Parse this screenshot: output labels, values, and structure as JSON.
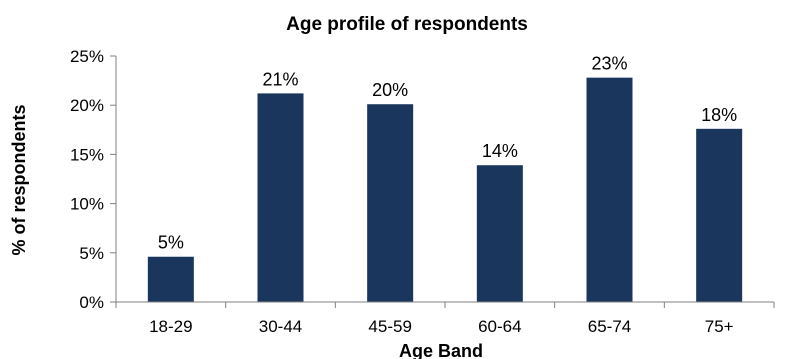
{
  "chart_data": {
    "type": "bar",
    "title": "Age profile of respondents",
    "xlabel": "Age Band",
    "ylabel": "% of respondents",
    "categories": [
      "18-29",
      "30-44",
      "45-59",
      "60-64",
      "65-74",
      "75+"
    ],
    "values": [
      4.6,
      21.2,
      20.1,
      13.9,
      22.8,
      17.6
    ],
    "data_labels": [
      "5%",
      "21%",
      "20%",
      "14%",
      "23%",
      "18%"
    ],
    "value_unit": "%",
    "ylim": [
      0,
      25
    ],
    "yticks": [
      0,
      5,
      10,
      15,
      20,
      25
    ],
    "ytick_labels": [
      "0%",
      "5%",
      "10%",
      "15%",
      "20%",
      "25%"
    ],
    "grid": false,
    "legend": "none",
    "bar_color": "#1B365D"
  }
}
